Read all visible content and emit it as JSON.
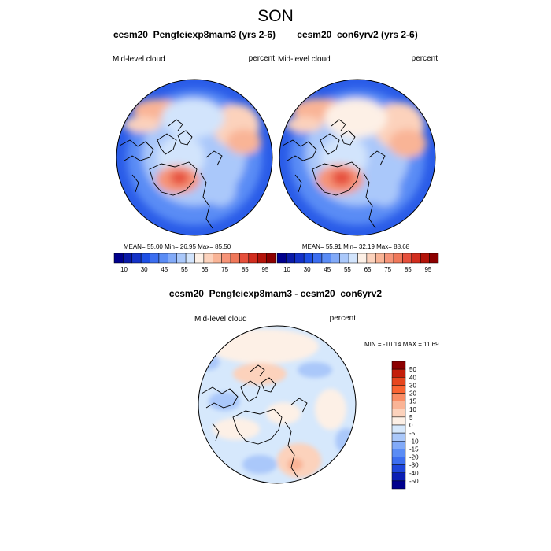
{
  "title": "SON",
  "panels": [
    {
      "title": "cesm20_Pengfeiexp8mam3 (yrs 2-6)",
      "left_label": "Mid-level cloud",
      "right_label": "percent",
      "stats": "MEAN=  55.00  Min=  26.95  Max=  85.50"
    },
    {
      "title": "cesm20_con6yrv2 (yrs 2-6)",
      "left_label": "Mid-level cloud",
      "right_label": "percent",
      "stats": "MEAN=  55.91  Min=  32.19  Max=  88.68"
    },
    {
      "title": "cesm20_Pengfeiexp8mam3 - cesm20_con6yrv2",
      "left_label": "Mid-level cloud",
      "right_label": "percent",
      "stats": "MIN = -10.14 MAX =  11.69"
    }
  ],
  "colorbar_top": {
    "labels": [
      "10",
      "30",
      "45",
      "55",
      "65",
      "75",
      "85",
      "95"
    ],
    "colors": [
      "#00008c",
      "#0a1aa8",
      "#1432c8",
      "#1e50e6",
      "#3c6ef0",
      "#5a8cf5",
      "#82aaf8",
      "#aac8fa",
      "#d2e4fc",
      "#fdf0e6",
      "#fcd2bc",
      "#f9b496",
      "#f69478",
      "#f0785a",
      "#e6503c",
      "#d22d1e",
      "#b4140a",
      "#8c0000"
    ]
  },
  "colorbar_diff": {
    "labels": [
      "50",
      "40",
      "30",
      "20",
      "15",
      "10",
      "5",
      "0",
      "-5",
      "-10",
      "-15",
      "-20",
      "-30",
      "-40",
      "-50"
    ],
    "colors": [
      "#8c0000",
      "#c31e0a",
      "#e6461e",
      "#fa6432",
      "#f98c64",
      "#fab496",
      "#fcd2bc",
      "#fdf0e6",
      "#d6e8fc",
      "#aac8fa",
      "#82aaf8",
      "#5a8cf5",
      "#3c6ef0",
      "#1e46dc",
      "#0a1eb4",
      "#00008c"
    ]
  }
}
